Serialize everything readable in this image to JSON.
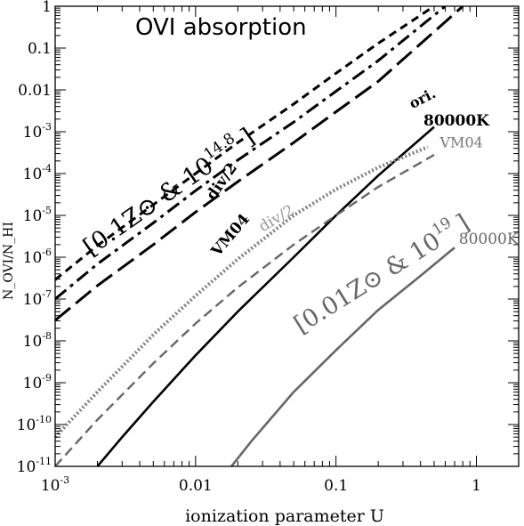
{
  "chart_data": {
    "type": "line",
    "title": "OVI absorption",
    "xlabel": "ionization parameter U",
    "ylabel": "N_OVI/N_HI",
    "xscale": "log",
    "yscale": "log",
    "xlim": [
      0.001,
      2.0
    ],
    "ylim": [
      1e-11,
      1
    ],
    "x_ticks": [
      {
        "value": 0.001,
        "label": "10",
        "exp": "-3"
      },
      {
        "value": 0.01,
        "label": "0.01",
        "exp": ""
      },
      {
        "value": 0.1,
        "label": "0.1",
        "exp": ""
      },
      {
        "value": 1,
        "label": "1",
        "exp": ""
      }
    ],
    "y_ticks": [
      {
        "value": 1,
        "label": "1",
        "exp": ""
      },
      {
        "value": 0.1,
        "label": "0.1",
        "exp": ""
      },
      {
        "value": 0.01,
        "label": "0.01",
        "exp": ""
      },
      {
        "value": 0.001,
        "label": "10",
        "exp": "-3"
      },
      {
        "value": 0.0001,
        "label": "10",
        "exp": "-4"
      },
      {
        "value": 1e-05,
        "label": "10",
        "exp": "-5"
      },
      {
        "value": 1e-06,
        "label": "10",
        "exp": "-6"
      },
      {
        "value": 1e-07,
        "label": "10",
        "exp": "-7"
      },
      {
        "value": 1e-08,
        "label": "10",
        "exp": "-8"
      },
      {
        "value": 1e-09,
        "label": "10",
        "exp": "-9"
      },
      {
        "value": 1e-10,
        "label": "10",
        "exp": "-10"
      },
      {
        "value": 1e-11,
        "label": "10",
        "exp": "-11"
      }
    ],
    "group_labels": [
      {
        "text": "[0.1Z⊙ & 10",
        "sup": "14.8",
        "close": "]",
        "color": "#000000"
      },
      {
        "text": "[0.01Z⊙ & 10",
        "sup": "19",
        "close": "]",
        "color": "#666666"
      }
    ],
    "series": [
      {
        "name": "ori.",
        "color": "#000000",
        "style": "short-dash",
        "x": [
          0.001,
          0.002,
          0.005,
          0.01,
          0.02,
          0.05,
          0.1,
          0.2,
          0.5
        ],
        "y": [
          2.9e-07,
          1.9e-06,
          1.8e-05,
          0.0001,
          0.00055,
          0.0046,
          0.025,
          0.13,
          1.0
        ]
      },
      {
        "name": "div/2",
        "color": "#000000",
        "style": "dash-dot",
        "x": [
          0.001,
          0.002,
          0.005,
          0.01,
          0.02,
          0.05,
          0.1,
          0.2,
          0.6
        ],
        "y": [
          1e-07,
          6.9e-07,
          6.6e-06,
          3.9e-05,
          0.00021,
          0.0017,
          0.0093,
          0.05,
          1.0
        ]
      },
      {
        "name": "VM04",
        "color": "#000000",
        "style": "long-dash",
        "x": [
          0.001,
          0.002,
          0.005,
          0.01,
          0.02,
          0.05,
          0.1,
          0.2,
          0.8
        ],
        "y": [
          3.1e-08,
          2.1e-07,
          2e-06,
          1.2e-05,
          6.4e-05,
          0.00055,
          0.003,
          0.016,
          1.0
        ]
      },
      {
        "name": "80000K",
        "color": "#000000",
        "style": "solid",
        "x": [
          0.002,
          0.003,
          0.005,
          0.01,
          0.02,
          0.05,
          0.1,
          0.2,
          0.5
        ],
        "y": [
          1e-11,
          5e-11,
          3.5e-10,
          4.5e-09,
          5e-08,
          1e-06,
          1e-05,
          9e-05,
          0.0013
        ]
      },
      {
        "name": "div/2",
        "color": "#808080",
        "style": "dotted",
        "x": [
          0.001,
          0.002,
          0.005,
          0.01,
          0.02,
          0.05,
          0.1,
          0.2,
          0.45
        ],
        "y": [
          5e-11,
          6e-10,
          1.4e-08,
          1.2e-07,
          9e-07,
          1e-05,
          4.2e-05,
          0.00014,
          0.00043
        ]
      },
      {
        "name": "VM04",
        "color": "#666666",
        "style": "dash",
        "x": [
          0.001,
          0.002,
          0.005,
          0.01,
          0.02,
          0.05,
          0.1,
          0.2,
          0.5
        ],
        "y": [
          1e-11,
          1.3e-10,
          2.9e-09,
          2.6e-08,
          1.9e-07,
          2e-06,
          1e-05,
          4.8e-05,
          0.00028
        ]
      },
      {
        "name": "80000K",
        "color": "#666666",
        "style": "solid",
        "x": [
          0.018,
          0.025,
          0.05,
          0.1,
          0.2,
          0.4,
          0.7
        ],
        "y": [
          1e-11,
          4e-11,
          6e-10,
          6e-09,
          5.5e-08,
          3.6e-07,
          1.7e-06
        ]
      }
    ],
    "series_labels": [
      {
        "text": "ori.",
        "color": "#000000",
        "x": 0.35,
        "y": 0.0035,
        "rotate": -27,
        "size": 16,
        "bold": true
      },
      {
        "text": "div/2",
        "color": "#000000",
        "x": 0.0135,
        "y": 2.2e-05,
        "rotate": -55,
        "size": 17,
        "bold": true
      },
      {
        "text": "VM04",
        "color": "#000000",
        "x": 0.0145,
        "y": 1e-06,
        "rotate": -50,
        "size": 17,
        "bold": true
      },
      {
        "text": "80000K",
        "color": "#000000",
        "x": 0.42,
        "y": 0.0014,
        "rotate": 0,
        "size": 17,
        "bold": true
      },
      {
        "text": "VM04",
        "color": "#777777",
        "x": 0.55,
        "y": 0.00042,
        "rotate": 0,
        "size": 16,
        "bold": false
      },
      {
        "text": "div/2",
        "color": "#999999",
        "x": 0.03,
        "y": 4e-06,
        "rotate": -30,
        "size": 17,
        "bold": false
      },
      {
        "text": "80000K",
        "color": "#666666",
        "x": 0.75,
        "y": 2.1e-06,
        "rotate": 0,
        "size": 17,
        "bold": false
      }
    ],
    "grid": false,
    "legend": "none"
  }
}
